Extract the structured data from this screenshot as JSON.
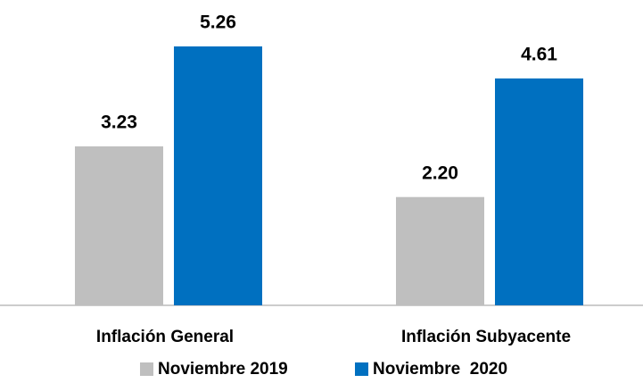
{
  "chart_data": {
    "type": "bar",
    "categories": [
      "Inflación General",
      "Inflación Subyacente"
    ],
    "series": [
      {
        "name": "Noviembre 2019",
        "color": "#bfbfbf",
        "values": [
          3.23,
          2.2
        ],
        "value_labels": [
          "3.23",
          "2.20"
        ]
      },
      {
        "name": "Noviembre  2020",
        "color": "#0070c0",
        "values": [
          5.26,
          4.61
        ],
        "value_labels": [
          "5.26",
          "4.61"
        ]
      }
    ]
  }
}
